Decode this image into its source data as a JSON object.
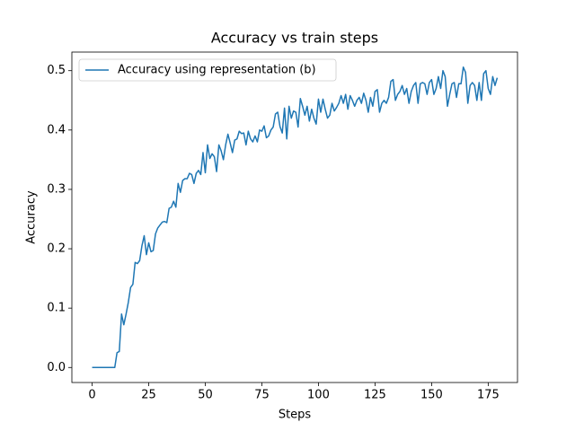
{
  "chart_data": {
    "type": "line",
    "title": "Accuracy vs train steps",
    "x_label": "Steps",
    "y_label": "Accuracy",
    "x": [
      0,
      1,
      2,
      3,
      4,
      5,
      6,
      7,
      8,
      9,
      10,
      11,
      12,
      13,
      14,
      15,
      16,
      17,
      18,
      19,
      20,
      21,
      22,
      23,
      24,
      25,
      26,
      27,
      28,
      29,
      30,
      31,
      32,
      33,
      34,
      35,
      36,
      37,
      38,
      39,
      40,
      41,
      42,
      43,
      44,
      45,
      46,
      47,
      48,
      49,
      50,
      51,
      52,
      53,
      54,
      55,
      56,
      57,
      58,
      59,
      60,
      61,
      62,
      63,
      64,
      65,
      66,
      67,
      68,
      69,
      70,
      71,
      72,
      73,
      74,
      75,
      76,
      77,
      78,
      79,
      80,
      81,
      82,
      83,
      84,
      85,
      86,
      87,
      88,
      89,
      90,
      91,
      92,
      93,
      94,
      95,
      96,
      97,
      98,
      99,
      100,
      101,
      102,
      103,
      104,
      105,
      106,
      107,
      108,
      109,
      110,
      111,
      112,
      113,
      114,
      115,
      116,
      117,
      118,
      119,
      120,
      121,
      122,
      123,
      124,
      125,
      126,
      127,
      128,
      129,
      130,
      131,
      132,
      133,
      134,
      135,
      136,
      137,
      138,
      139,
      140,
      141,
      142,
      143,
      144,
      145,
      146,
      147,
      148,
      149,
      150,
      151,
      152,
      153,
      154,
      155,
      156,
      157,
      158,
      159,
      160,
      161,
      162,
      163,
      164,
      165,
      166,
      167,
      168,
      169,
      170,
      171,
      172,
      173,
      174,
      175,
      176,
      177,
      178,
      179
    ],
    "series": [
      {
        "name": "Accuracy using representation (b)",
        "color": "#1f77b4",
        "values": [
          0,
          0,
          0,
          0,
          0,
          0,
          0,
          0,
          0,
          0,
          0,
          0.025,
          0.027,
          0.09,
          0.072,
          0.09,
          0.11,
          0.135,
          0.14,
          0.177,
          0.175,
          0.18,
          0.205,
          0.222,
          0.19,
          0.21,
          0.195,
          0.197,
          0.225,
          0.235,
          0.24,
          0.245,
          0.246,
          0.244,
          0.268,
          0.27,
          0.28,
          0.27,
          0.31,
          0.295,
          0.315,
          0.318,
          0.318,
          0.327,
          0.325,
          0.31,
          0.327,
          0.332,
          0.325,
          0.362,
          0.328,
          0.375,
          0.352,
          0.36,
          0.355,
          0.33,
          0.375,
          0.365,
          0.35,
          0.375,
          0.393,
          0.378,
          0.362,
          0.383,
          0.385,
          0.398,
          0.394,
          0.395,
          0.375,
          0.398,
          0.385,
          0.38,
          0.39,
          0.38,
          0.4,
          0.398,
          0.407,
          0.387,
          0.39,
          0.4,
          0.405,
          0.427,
          0.43,
          0.406,
          0.395,
          0.437,
          0.385,
          0.44,
          0.42,
          0.432,
          0.43,
          0.405,
          0.453,
          0.44,
          0.425,
          0.44,
          0.415,
          0.435,
          0.42,
          0.41,
          0.452,
          0.43,
          0.452,
          0.435,
          0.42,
          0.425,
          0.445,
          0.432,
          0.438,
          0.445,
          0.458,
          0.445,
          0.46,
          0.435,
          0.458,
          0.45,
          0.44,
          0.45,
          0.455,
          0.445,
          0.462,
          0.45,
          0.43,
          0.455,
          0.44,
          0.465,
          0.468,
          0.43,
          0.445,
          0.45,
          0.445,
          0.455,
          0.482,
          0.485,
          0.45,
          0.46,
          0.465,
          0.475,
          0.46,
          0.47,
          0.445,
          0.465,
          0.475,
          0.48,
          0.445,
          0.478,
          0.48,
          0.478,
          0.46,
          0.48,
          0.485,
          0.46,
          0.47,
          0.49,
          0.47,
          0.5,
          0.49,
          0.44,
          0.46,
          0.478,
          0.48,
          0.455,
          0.478,
          0.478,
          0.506,
          0.497,
          0.445,
          0.475,
          0.48,
          0.475,
          0.45,
          0.48,
          0.45,
          0.495,
          0.5,
          0.47,
          0.46,
          0.49,
          0.475,
          0.488
        ]
      }
    ],
    "xlim": [
      -8.95,
      187.95
    ],
    "ylim": [
      -0.0253,
      0.5313
    ],
    "xticks": [
      0,
      25,
      50,
      75,
      100,
      125,
      150,
      175
    ],
    "yticks": [
      {
        "value": 0,
        "label": "0.0"
      },
      0.1,
      0.2,
      0.3,
      0.4,
      0.5
    ],
    "grid": false,
    "legend": "upper-left"
  }
}
